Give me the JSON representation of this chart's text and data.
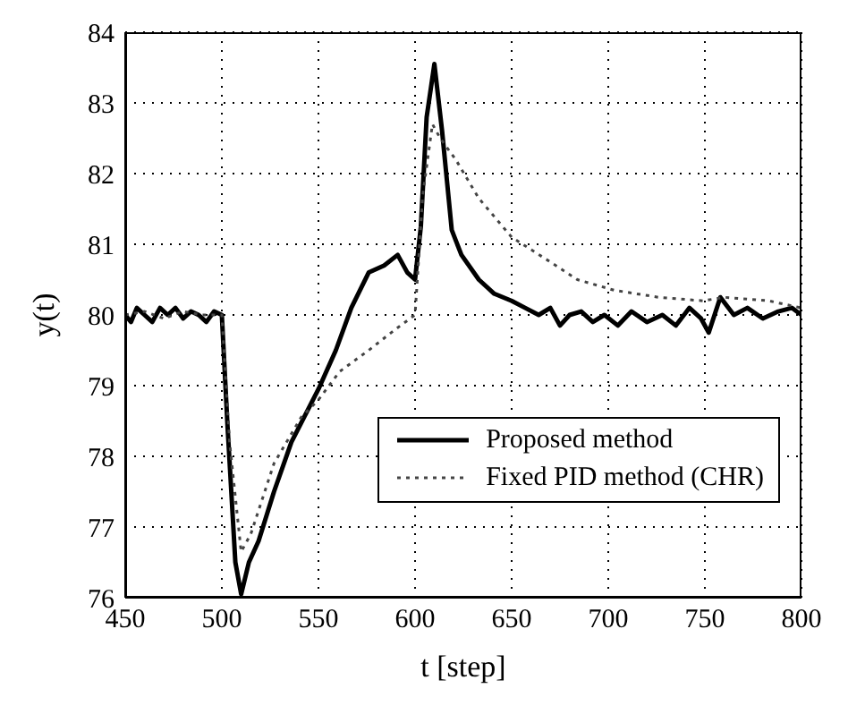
{
  "chart_data": {
    "type": "line",
    "xlabel": "t [step]",
    "ylabel": "y(t)",
    "xlim": [
      450,
      800
    ],
    "xticks": [
      450,
      500,
      550,
      600,
      650,
      700,
      750,
      800
    ],
    "ylim": [
      76,
      84
    ],
    "yticks": [
      76,
      77,
      78,
      79,
      80,
      81,
      82,
      83,
      84
    ],
    "grid": true,
    "legend": "bottom right",
    "marker": "none",
    "series": [
      {
        "name": "Proposed method",
        "color": "#000000",
        "line_style": "solid",
        "x": [
          450,
          453,
          456,
          460,
          464,
          468,
          472,
          476,
          480,
          484,
          488,
          492,
          496,
          500,
          503,
          507,
          510,
          514,
          519,
          527,
          536,
          550,
          559,
          567,
          576,
          584,
          591,
          596,
          600,
          603,
          606,
          610,
          614,
          619,
          624,
          633,
          641,
          650,
          657,
          664,
          670,
          675,
          680,
          686,
          692,
          698,
          705,
          712,
          720,
          728,
          735,
          742,
          748,
          752,
          755,
          758,
          765,
          772,
          780,
          788,
          795,
          800
        ],
        "values": [
          80.0,
          79.9,
          80.1,
          80.0,
          79.9,
          80.1,
          80.0,
          80.1,
          79.95,
          80.05,
          80.0,
          79.9,
          80.05,
          80.0,
          78.4,
          76.5,
          76.05,
          76.5,
          76.8,
          77.5,
          78.2,
          78.95,
          79.5,
          80.1,
          80.6,
          80.7,
          80.85,
          80.6,
          80.5,
          81.25,
          82.8,
          83.55,
          82.6,
          81.2,
          80.85,
          80.5,
          80.3,
          80.2,
          80.1,
          80.0,
          80.1,
          79.85,
          80.0,
          80.05,
          79.9,
          80.0,
          79.85,
          80.05,
          79.9,
          80.0,
          79.85,
          80.1,
          79.95,
          79.75,
          80.0,
          80.25,
          80.0,
          80.1,
          79.95,
          80.05,
          80.1,
          80.0
        ]
      },
      {
        "name": "Fixed PID method (CHR)",
        "color": "#444444",
        "line_style": "dotted",
        "x": [
          450,
          460,
          470,
          480,
          490,
          500,
          504,
          510,
          515,
          527,
          541,
          550,
          561,
          576,
          590,
          600,
          604,
          609,
          613,
          621,
          633,
          650,
          670,
          684,
          703,
          726,
          749,
          760,
          783,
          800
        ],
        "values": [
          80.0,
          80.05,
          79.95,
          80.05,
          80.0,
          80.0,
          78.2,
          76.65,
          76.9,
          77.9,
          78.55,
          78.8,
          79.2,
          79.5,
          79.8,
          80.0,
          81.7,
          82.7,
          82.5,
          82.2,
          81.65,
          81.1,
          80.75,
          80.5,
          80.35,
          80.25,
          80.2,
          80.25,
          80.2,
          80.1
        ]
      }
    ]
  }
}
